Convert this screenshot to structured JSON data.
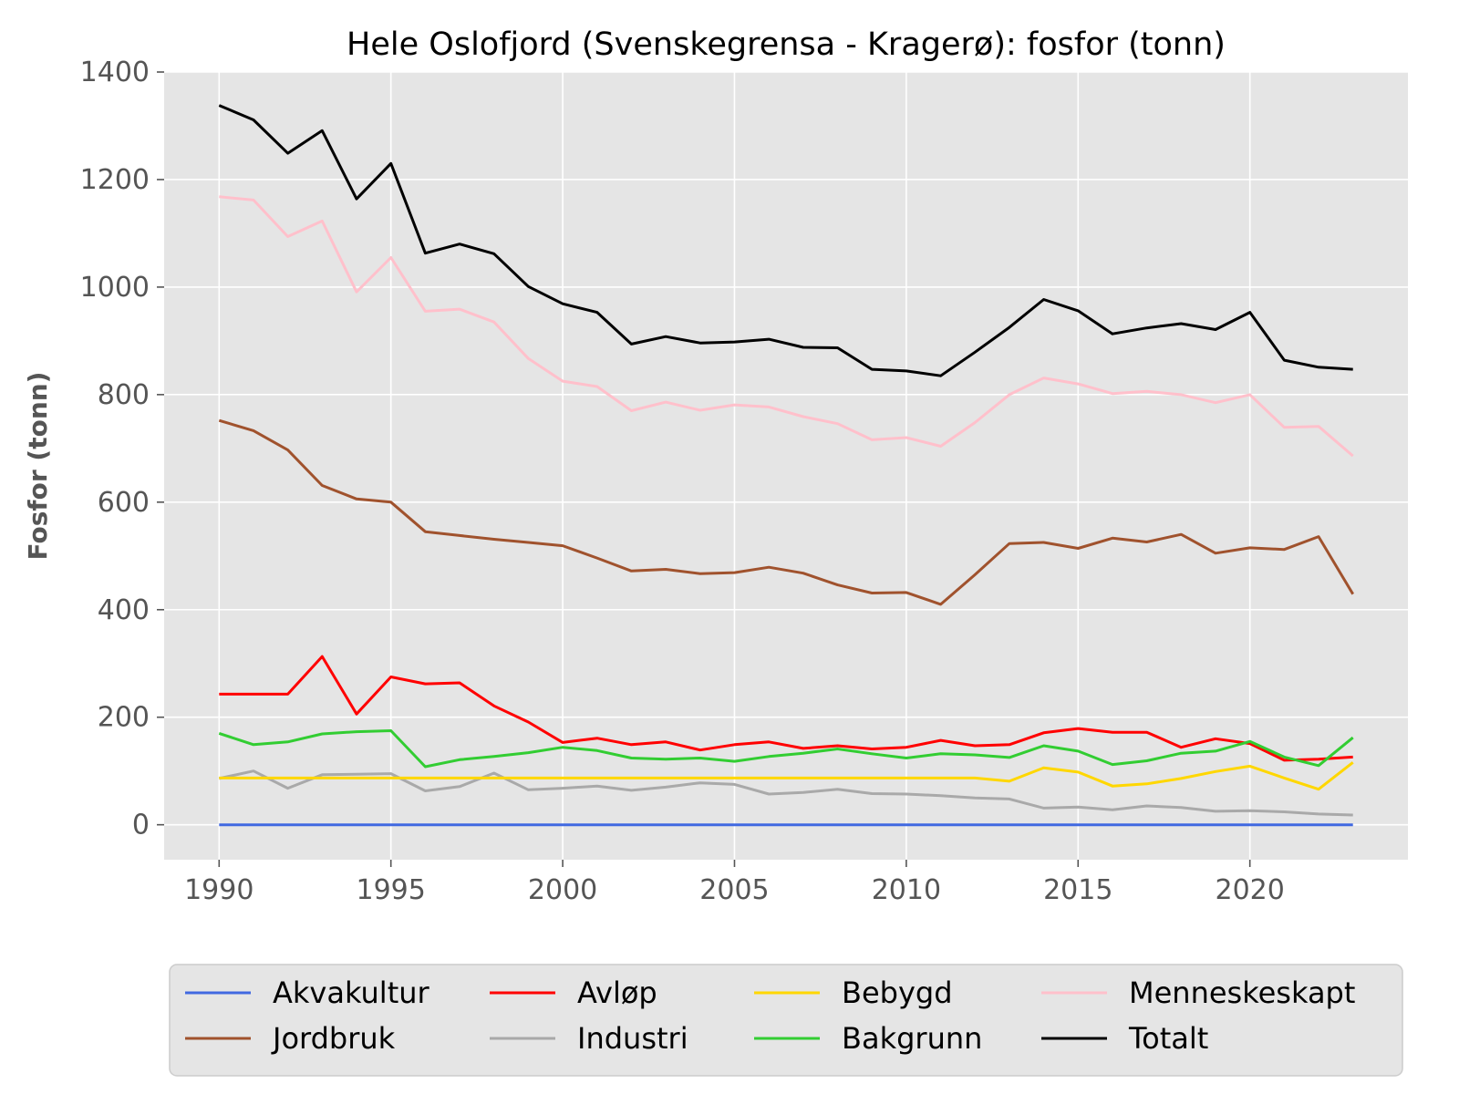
{
  "chart_data": {
    "type": "line",
    "title": "Hele Oslofjord (Svenskegrensa - Kragerø): fosfor (tonn)",
    "xlabel": "",
    "ylabel": "Fosfor (tonn)",
    "xlim": [
      1988.4,
      2024.6
    ],
    "ylim": [
      -65,
      1400
    ],
    "xticks": [
      1990,
      1995,
      2000,
      2005,
      2010,
      2015,
      2020
    ],
    "yticks": [
      0,
      200,
      400,
      600,
      800,
      1000,
      1200,
      1400
    ],
    "grid": true,
    "legend_position": "bottom",
    "x": [
      1990,
      1991,
      1992,
      1993,
      1994,
      1995,
      1996,
      1997,
      1998,
      1999,
      2000,
      2001,
      2002,
      2003,
      2004,
      2005,
      2006,
      2007,
      2008,
      2009,
      2010,
      2011,
      2012,
      2013,
      2014,
      2015,
      2016,
      2017,
      2018,
      2019,
      2020,
      2021,
      2022,
      2023
    ],
    "series": [
      {
        "name": "Akvakultur",
        "color": "#4169e1",
        "values": [
          0,
          0,
          0,
          0,
          0,
          0,
          0,
          0,
          0,
          0,
          0,
          0,
          0,
          0,
          0,
          0,
          0,
          0,
          0,
          0,
          0,
          0,
          0,
          0,
          0,
          0,
          0,
          0,
          0,
          0,
          0,
          0,
          0,
          0
        ]
      },
      {
        "name": "Jordbruk",
        "color": "#a0522d",
        "values": [
          752,
          733,
          697,
          631,
          606,
          600,
          545,
          538,
          531,
          525,
          519,
          496,
          472,
          475,
          467,
          469,
          479,
          468,
          446,
          431,
          432,
          410,
          465,
          523,
          525,
          514,
          533,
          526,
          540,
          505,
          515,
          512,
          536,
          429
        ]
      },
      {
        "name": "Avløp",
        "color": "#ff0000",
        "values": [
          243,
          243,
          243,
          313,
          206,
          275,
          262,
          264,
          221,
          191,
          153,
          161,
          149,
          154,
          139,
          149,
          154,
          142,
          147,
          141,
          144,
          157,
          147,
          149,
          171,
          179,
          172,
          172,
          144,
          160,
          151,
          120,
          122,
          126
        ]
      },
      {
        "name": "Industri",
        "color": "#a9a9a9",
        "values": [
          86,
          100,
          68,
          93,
          94,
          95,
          63,
          71,
          96,
          65,
          68,
          72,
          64,
          70,
          78,
          75,
          57,
          60,
          66,
          58,
          57,
          54,
          50,
          48,
          31,
          33,
          28,
          35,
          32,
          25,
          26,
          24,
          20,
          18
        ]
      },
      {
        "name": "Bebygd",
        "color": "#ffd700",
        "values": [
          87,
          87,
          87,
          87,
          87,
          87,
          87,
          87,
          87,
          87,
          87,
          87,
          87,
          87,
          87,
          87,
          87,
          87,
          87,
          87,
          87,
          87,
          87,
          81,
          106,
          98,
          72,
          76,
          86,
          99,
          109,
          87,
          66,
          116
        ]
      },
      {
        "name": "Bakgrunn",
        "color": "#32cd32",
        "values": [
          170,
          149,
          154,
          169,
          173,
          175,
          108,
          121,
          127,
          134,
          144,
          138,
          124,
          122,
          124,
          118,
          127,
          133,
          141,
          132,
          124,
          132,
          130,
          125,
          147,
          137,
          112,
          119,
          133,
          137,
          155,
          126,
          110,
          162
        ]
      },
      {
        "name": "Menneskeskapt",
        "color": "#ffc0cb",
        "values": [
          1168,
          1162,
          1094,
          1123,
          991,
          1055,
          955,
          959,
          935,
          867,
          825,
          815,
          770,
          786,
          771,
          781,
          777,
          759,
          746,
          716,
          720,
          704,
          748,
          800,
          831,
          820,
          802,
          806,
          800,
          785,
          800,
          739,
          741,
          686
        ]
      },
      {
        "name": "Totalt",
        "color": "#000000",
        "values": [
          1338,
          1311,
          1249,
          1291,
          1164,
          1230,
          1063,
          1080,
          1062,
          1001,
          969,
          953,
          894,
          908,
          896,
          898,
          903,
          888,
          887,
          847,
          844,
          835,
          879,
          925,
          977,
          956,
          913,
          924,
          932,
          921,
          953,
          864,
          851,
          847
        ]
      }
    ]
  }
}
